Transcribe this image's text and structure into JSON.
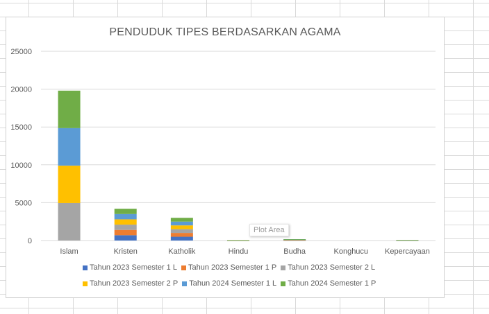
{
  "chart_data": {
    "type": "bar",
    "stacked": true,
    "title": "PENDUDUK TIPES BERDASARKAN AGAMA",
    "xlabel": "",
    "ylabel": "",
    "ylim": [
      0,
      25000
    ],
    "yticks": [
      0,
      5000,
      10000,
      15000,
      20000,
      25000
    ],
    "grid": true,
    "legend_position": "bottom",
    "categories": [
      "Islam",
      "Kristen",
      "Katholik",
      "Hindu",
      "Budha",
      "Konghucu",
      "Kepercayaan"
    ],
    "series": [
      {
        "name": "Tahun 2023 Semester 1 L",
        "color": "#4472c4",
        "values": [
          0,
          700,
          500,
          5,
          30,
          0,
          10
        ]
      },
      {
        "name": "Tahun 2023 Semester 1 P",
        "color": "#ed7d31",
        "values": [
          0,
          700,
          500,
          5,
          30,
          0,
          10
        ]
      },
      {
        "name": "Tahun 2023 Semester 2 L",
        "color": "#a5a5a5",
        "values": [
          4950,
          700,
          500,
          5,
          30,
          0,
          10
        ]
      },
      {
        "name": "Tahun 2023 Semester 2 P",
        "color": "#ffc000",
        "values": [
          4950,
          700,
          500,
          5,
          30,
          0,
          10
        ]
      },
      {
        "name": "Tahun 2024 Semester 1 L",
        "color": "#5b9bd5",
        "values": [
          4950,
          700,
          500,
          5,
          30,
          0,
          10
        ]
      },
      {
        "name": "Tahun 2024 Semester 1 P",
        "color": "#70ad47",
        "values": [
          4950,
          700,
          500,
          5,
          30,
          0,
          10
        ]
      }
    ]
  },
  "tooltip": {
    "text": "Plot Area"
  }
}
